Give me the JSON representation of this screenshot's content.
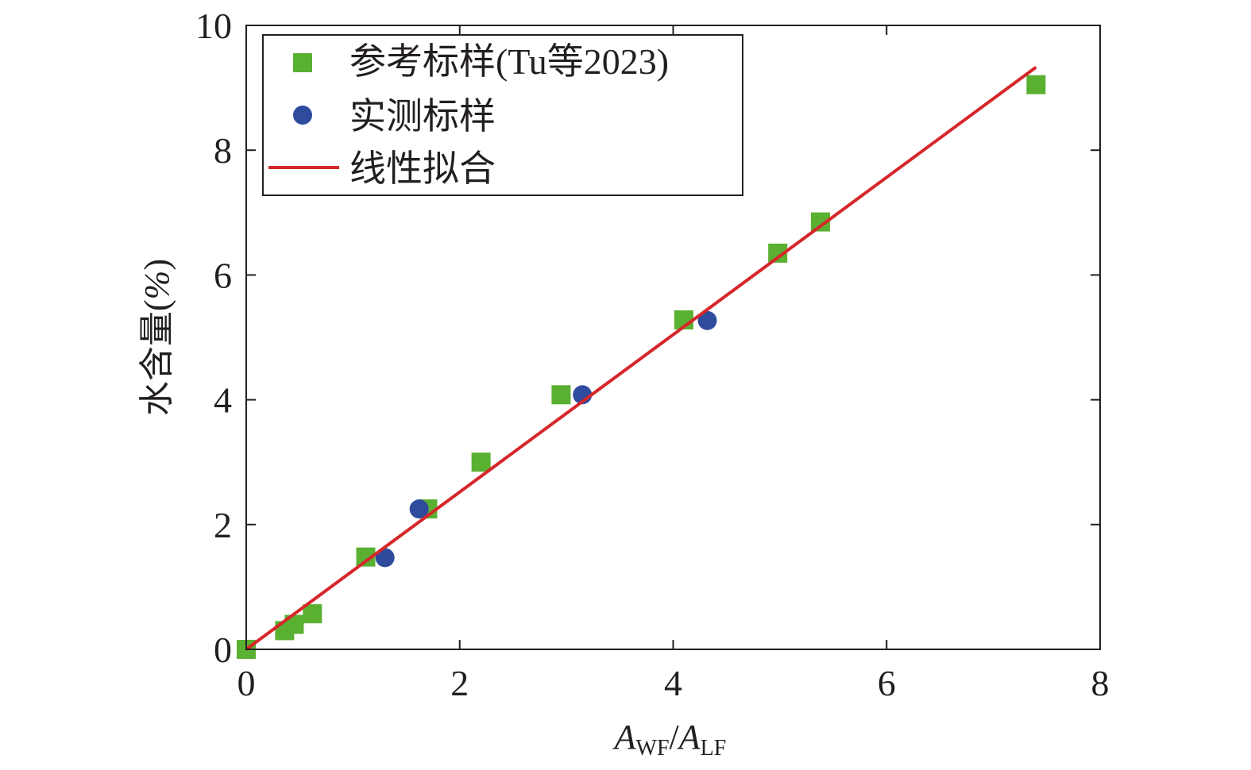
{
  "chart_data": {
    "type": "scatter",
    "xlabel": {
      "main1": "A",
      "sub1": "WF",
      "sep": "/",
      "main2": "A",
      "sub2": "LF"
    },
    "ylabel": {
      "text": "水含量(",
      "pct": "%",
      "close": ")"
    },
    "xlim": [
      0,
      8
    ],
    "ylim": [
      0,
      10
    ],
    "xticks": [
      0,
      2,
      4,
      6,
      8
    ],
    "yticks": [
      0,
      2,
      4,
      6,
      8,
      10
    ],
    "xtick_labels": [
      "0",
      "2",
      "4",
      "6",
      "8"
    ],
    "ytick_labels": [
      "0",
      "2",
      "4",
      "6",
      "8",
      "10"
    ],
    "grid": false,
    "legend_position": "top-left",
    "series": [
      {
        "name": "参考标样(Tu等2023)",
        "marker": "square",
        "color": "#5ab031",
        "x": [
          0.0,
          0.36,
          0.45,
          0.62,
          1.12,
          1.7,
          2.2,
          2.95,
          4.1,
          4.98,
          5.38,
          7.4
        ],
        "y": [
          0.0,
          0.3,
          0.4,
          0.57,
          1.48,
          2.25,
          3.0,
          4.08,
          5.28,
          6.35,
          6.85,
          9.05
        ]
      },
      {
        "name": "实测标样",
        "marker": "circle",
        "color": "#2e4b9e",
        "x": [
          1.3,
          1.62,
          3.15,
          4.32
        ],
        "y": [
          1.47,
          2.25,
          4.08,
          5.27
        ]
      },
      {
        "name": "线性拟合",
        "marker": "line",
        "color": "#d6262a",
        "x": [
          0.0,
          7.4
        ],
        "y": [
          0.0,
          9.33
        ]
      }
    ]
  }
}
